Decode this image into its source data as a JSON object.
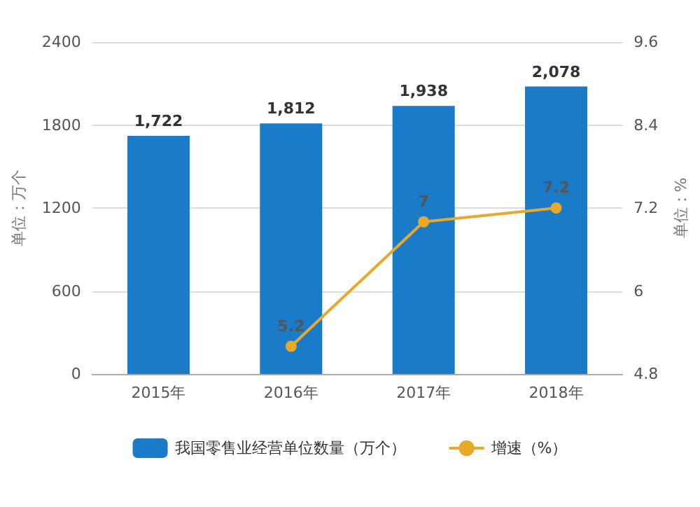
{
  "chart_data": {
    "type": "bar",
    "categories": [
      "2015年",
      "2016年",
      "2017年",
      "2018年"
    ],
    "ylabel": "单位：万个",
    "y2label": "单位：%",
    "series": [
      {
        "name": "我国零售业经营单位数量（万个）",
        "color": "#1a7bc9",
        "values": [
          1722,
          1812,
          1938,
          2078
        ],
        "value_labels": [
          "1,722",
          "1,812",
          "1,938",
          "2,078"
        ]
      },
      {
        "name": "增速（%）",
        "type": "line",
        "axis": "y2",
        "color": "#e8a82a",
        "values": [
          null,
          5.2,
          7,
          7.2
        ],
        "value_labels": [
          null,
          "5.2",
          "7",
          "7.2"
        ],
        "marker": "circle"
      }
    ],
    "ylim": [
      0,
      2400
    ],
    "yticks": [
      0,
      600,
      1200,
      1800,
      2400
    ],
    "y2lim": [
      4.8,
      9.6
    ],
    "y2ticks": [
      4.8,
      6,
      7.2,
      8.4,
      9.6
    ],
    "grid": "y",
    "legend": "bottom"
  }
}
